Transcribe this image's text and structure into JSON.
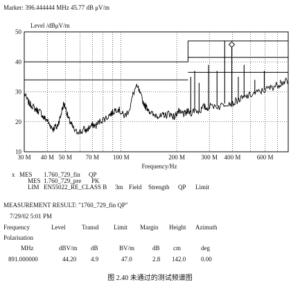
{
  "marker_line": "Marker:  396.444444 MHz   45.77 dB μV/m",
  "chart_data": {
    "type": "line",
    "title": "",
    "ylabel": "Level /dBμV/m",
    "xlabel": "Frequency/Hz",
    "x_scale": "log",
    "xlim_mhz": [
      30,
      800
    ],
    "ylim": [
      10,
      50
    ],
    "grid": true,
    "y_ticks": [
      10,
      20,
      30,
      40,
      50
    ],
    "x_ticks": [
      {
        "mhz": 30,
        "label": "30 M"
      },
      {
        "mhz": 40,
        "label": "40 M"
      },
      {
        "mhz": 50,
        "label": "50 M"
      },
      {
        "mhz": 70,
        "label": "70 M"
      },
      {
        "mhz": 100,
        "label": "100 M"
      },
      {
        "mhz": 200,
        "label": "200 M"
      },
      {
        "mhz": 300,
        "label": "300 M"
      },
      {
        "mhz": 400,
        "label": "400 M"
      },
      {
        "mhz": 600,
        "label": "600 M"
      }
    ],
    "limit_lines": [
      {
        "start_mhz": 30,
        "end_mhz": 230,
        "level": 40
      },
      {
        "start_mhz": 30,
        "end_mhz": 230,
        "level": 34
      },
      {
        "start_mhz": 230,
        "end_mhz": 800,
        "level": 47
      },
      {
        "start_mhz": 230,
        "end_mhz": 800,
        "level": 41.5
      },
      {
        "start_mhz": 230,
        "end_mhz": 800,
        "level": 36.5
      }
    ],
    "trace": [
      [
        30,
        29.5
      ],
      [
        31,
        27.5
      ],
      [
        32,
        26
      ],
      [
        33,
        25.5
      ],
      [
        34,
        24.5
      ],
      [
        35,
        24
      ],
      [
        36,
        23.5
      ],
      [
        37,
        23
      ],
      [
        38,
        21.5
      ],
      [
        39,
        21
      ],
      [
        40,
        20.5
      ],
      [
        41,
        19
      ],
      [
        42,
        18.5
      ],
      [
        43,
        17.5
      ],
      [
        44,
        18.5
      ],
      [
        45,
        18
      ],
      [
        46,
        20
      ],
      [
        47,
        21.5
      ],
      [
        48,
        24
      ],
      [
        49,
        26
      ],
      [
        50,
        25
      ],
      [
        51,
        23
      ],
      [
        52,
        21
      ],
      [
        53,
        20
      ],
      [
        54,
        19
      ],
      [
        55,
        18
      ],
      [
        57,
        16.5
      ],
      [
        59,
        17
      ],
      [
        61,
        16.5
      ],
      [
        63,
        17.5
      ],
      [
        65,
        17
      ],
      [
        67,
        18
      ],
      [
        69,
        18.5
      ],
      [
        71,
        19
      ],
      [
        73,
        18.5
      ],
      [
        75,
        19.5
      ],
      [
        78,
        20.5
      ],
      [
        81,
        21
      ],
      [
        84,
        21.5
      ],
      [
        87,
        22.5
      ],
      [
        90,
        23
      ],
      [
        93,
        24
      ],
      [
        96,
        24.5
      ],
      [
        99,
        23.5
      ],
      [
        102,
        22.5
      ],
      [
        105,
        22
      ],
      [
        108,
        23
      ],
      [
        112,
        25
      ],
      [
        116,
        29
      ],
      [
        120,
        31.5
      ],
      [
        124,
        31
      ],
      [
        128,
        28.5
      ],
      [
        132,
        26.5
      ],
      [
        136,
        25
      ],
      [
        140,
        24.5
      ],
      [
        145,
        23
      ],
      [
        150,
        22
      ],
      [
        155,
        22.5
      ],
      [
        160,
        22
      ],
      [
        165,
        21.5
      ],
      [
        170,
        22.5
      ],
      [
        175,
        22
      ],
      [
        180,
        23
      ],
      [
        185,
        22.5
      ],
      [
        190,
        22
      ],
      [
        195,
        21.5
      ],
      [
        200,
        23
      ],
      [
        205,
        23.5
      ],
      [
        210,
        22.5
      ],
      [
        215,
        23
      ],
      [
        220,
        22.5
      ],
      [
        225,
        23
      ],
      [
        230,
        23.5
      ],
      [
        240,
        23
      ],
      [
        250,
        24
      ],
      [
        260,
        23.5
      ],
      [
        270,
        24
      ],
      [
        280,
        25
      ],
      [
        290,
        24.5
      ],
      [
        300,
        25
      ],
      [
        320,
        25.5
      ],
      [
        340,
        25
      ],
      [
        360,
        26
      ],
      [
        380,
        26.5
      ],
      [
        400,
        26
      ],
      [
        420,
        27
      ],
      [
        440,
        27.5
      ],
      [
        460,
        28
      ],
      [
        480,
        28.5
      ],
      [
        500,
        29
      ],
      [
        530,
        29.5
      ],
      [
        560,
        30
      ],
      [
        590,
        30.5
      ],
      [
        620,
        31
      ],
      [
        650,
        31.5
      ],
      [
        680,
        32
      ],
      [
        710,
        32.5
      ],
      [
        740,
        33
      ],
      [
        770,
        33.5
      ],
      [
        800,
        33
      ]
    ],
    "spikes": [
      {
        "mhz": 238,
        "peak": 35
      },
      {
        "mhz": 250,
        "peak": 37
      },
      {
        "mhz": 264,
        "peak": 33
      },
      {
        "mhz": 297,
        "peak": 39
      },
      {
        "mhz": 330,
        "peak": 37
      },
      {
        "mhz": 363,
        "peak": 47
      },
      {
        "mhz": 396.44,
        "peak": 45.77
      },
      {
        "mhz": 430,
        "peak": 35
      },
      {
        "mhz": 462,
        "peak": 39
      },
      {
        "mhz": 528,
        "peak": 34
      },
      {
        "mhz": 594,
        "peak": 37
      },
      {
        "mhz": 660,
        "peak": 32
      },
      {
        "mhz": 726,
        "peak": 34
      }
    ],
    "marker": {
      "mhz": 396.44,
      "level": 45.77
    }
  },
  "legend": {
    "row1": [
      "x",
      "MES",
      "1.760_729_fin",
      "QP"
    ],
    "row2": [
      "MES",
      "1.760_729_pre",
      "PK"
    ],
    "row3": [
      "LIM",
      "EN55022_RE_CLASS  B",
      "3m",
      "Field",
      "Strength",
      "QP",
      "Limit"
    ]
  },
  "result": {
    "title": "MEASUREMENT RESULT: \"1760_729_fin QP\"",
    "date": "7/29/02  5:01 PM",
    "headers": [
      "Frequency",
      "Level",
      "Transd",
      "Limit",
      "Margin",
      "Height",
      "Azimuth"
    ],
    "polarisation": "Polarisation",
    "units": [
      "MHz",
      "dBV/m",
      "dB",
      "BV/m",
      "dB",
      "cm",
      "deg"
    ],
    "row": [
      "891.000000",
      "44.20",
      "4.9",
      "47.0",
      "2.8",
      "142.0",
      "0.00"
    ]
  },
  "caption": "图 2.40   未通过的测试频谱图"
}
